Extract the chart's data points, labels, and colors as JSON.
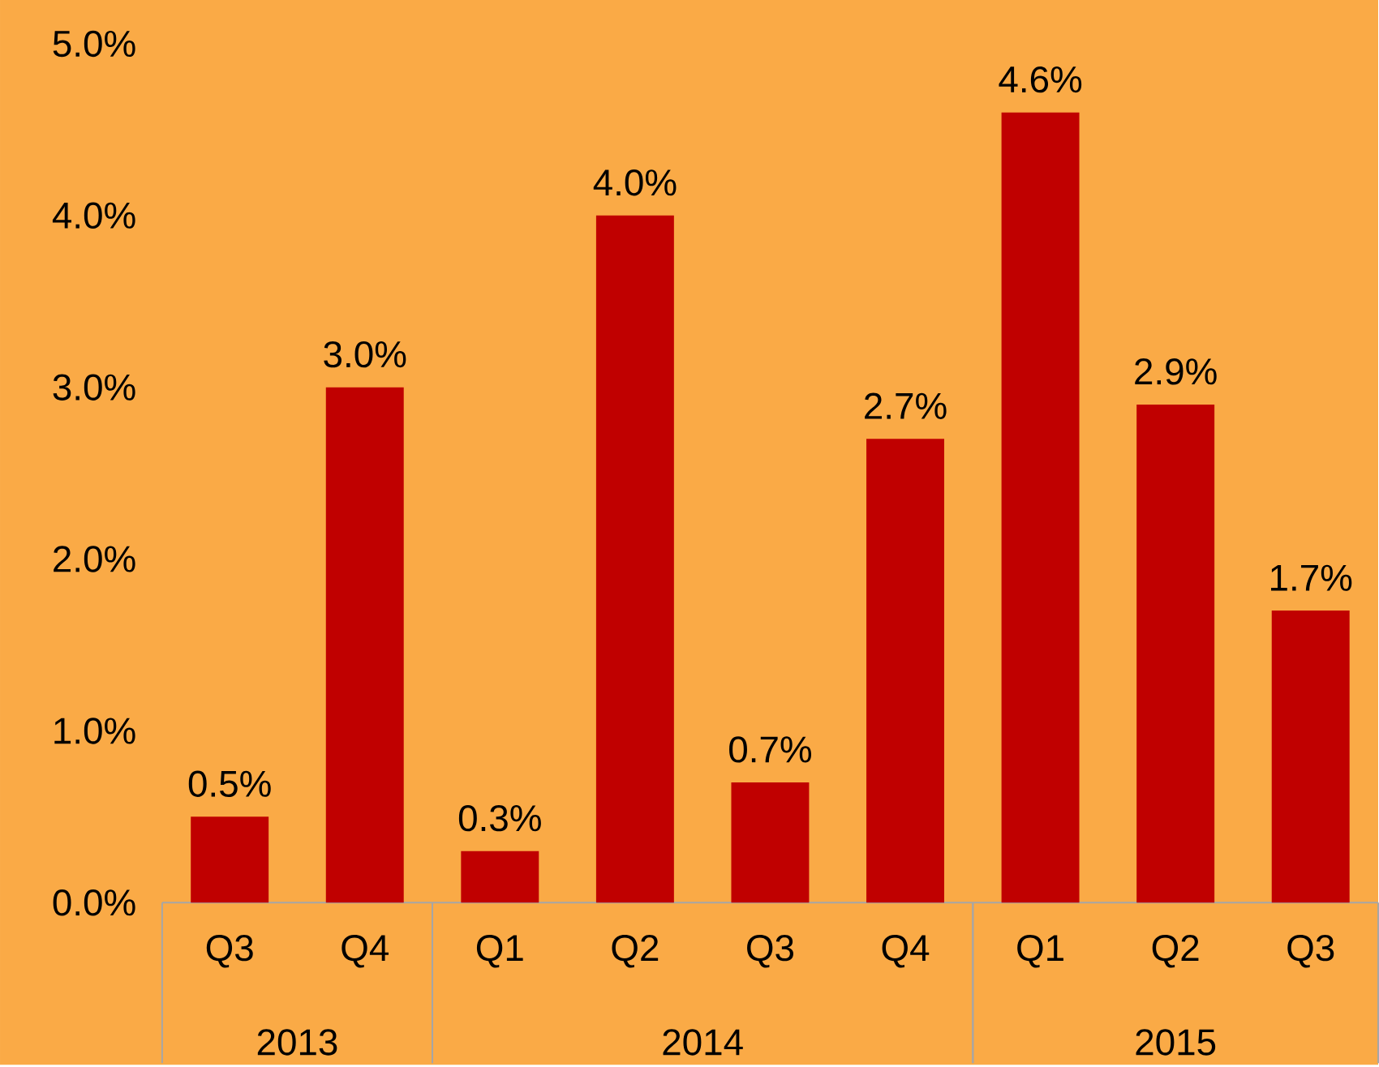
{
  "chart_data": {
    "type": "bar",
    "categories": [
      "Q3",
      "Q4",
      "Q1",
      "Q2",
      "Q3",
      "Q4",
      "Q1",
      "Q2",
      "Q3"
    ],
    "values": [
      0.5,
      3.0,
      0.3,
      4.0,
      0.7,
      2.7,
      4.6,
      2.9,
      1.7
    ],
    "value_labels": [
      "0.5%",
      "3.0%",
      "0.3%",
      "4.0%",
      "0.7%",
      "2.7%",
      "4.6%",
      "2.9%",
      "1.7%"
    ],
    "color": "#c00000",
    "ylim": [
      0,
      5
    ],
    "yticks": [
      {
        "value": 0,
        "label": "0.0%"
      },
      {
        "value": 1,
        "label": "1.0%"
      },
      {
        "value": 2,
        "label": "2.0%"
      },
      {
        "value": 3,
        "label": "3.0%"
      },
      {
        "value": 4,
        "label": "4.0%"
      },
      {
        "value": 5,
        "label": "5.0%"
      }
    ],
    "annotations": [
      "2013",
      "2014",
      "2015"
    ],
    "grid": false
  }
}
